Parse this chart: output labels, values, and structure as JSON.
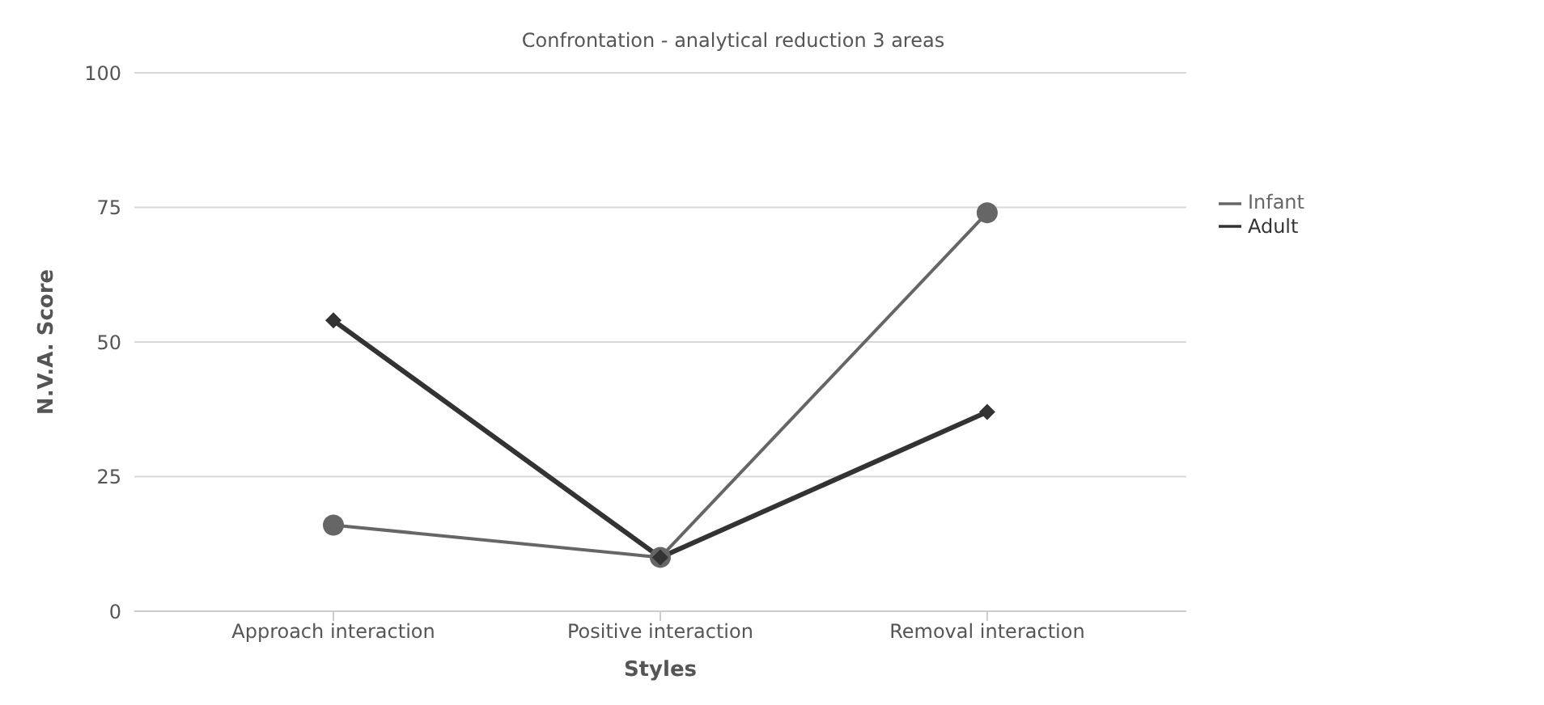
{
  "chart_data": {
    "type": "line",
    "title": "Confrontation - analytical reduction 3 areas",
    "xlabel": "Styles",
    "ylabel": "N.V.A. Score",
    "categories": [
      "Approach interaction",
      "Positive interaction",
      "Removal interaction"
    ],
    "series": [
      {
        "name": "Infant",
        "color": "#666666",
        "marker": "circle",
        "values": [
          16,
          10,
          74
        ]
      },
      {
        "name": "Adult",
        "color": "#333333",
        "marker": "diamond",
        "values": [
          54,
          10,
          37
        ]
      }
    ],
    "ylim": [
      0,
      100
    ],
    "yticks": [
      0,
      25,
      50,
      75,
      100
    ],
    "grid": "y",
    "legend": "right"
  }
}
